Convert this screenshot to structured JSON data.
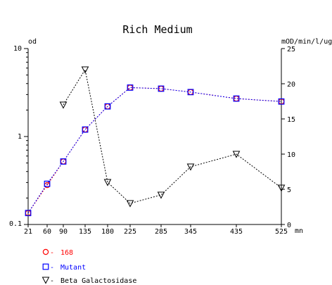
{
  "chart_data": {
    "type": "line",
    "title": "Rich Medium",
    "left_axis": {
      "label": "od",
      "scale": "log",
      "range": [
        0.1,
        10
      ],
      "ticks": [
        {
          "value": 0.1,
          "label": "0.1"
        },
        {
          "value": 1,
          "label": "1"
        },
        {
          "value": 10,
          "label": "10"
        }
      ]
    },
    "right_axis": {
      "label": "mOD/min/l/ug",
      "scale": "linear",
      "range": [
        0,
        25
      ],
      "ticks": [
        {
          "value": 0,
          "label": "0"
        },
        {
          "value": 5,
          "label": "5"
        },
        {
          "value": 10,
          "label": "10"
        },
        {
          "value": 15,
          "label": "15"
        },
        {
          "value": 20,
          "label": "20"
        },
        {
          "value": 25,
          "label": "25"
        }
      ]
    },
    "x_axis": {
      "label": "mn",
      "range": [
        21,
        525
      ],
      "ticks": [
        {
          "value": 21,
          "label": "21"
        },
        {
          "value": 60,
          "label": "60"
        },
        {
          "value": 90,
          "label": "90"
        },
        {
          "value": 135,
          "label": "135"
        },
        {
          "value": 180,
          "label": "180"
        },
        {
          "value": 225,
          "label": "225"
        },
        {
          "value": 285,
          "label": "285"
        },
        {
          "value": 345,
          "label": "345"
        },
        {
          "value": 435,
          "label": "435"
        },
        {
          "value": 525,
          "label": "525"
        }
      ]
    },
    "grid": false,
    "legend_position": "bottom-left",
    "series": [
      {
        "name": "168",
        "axis": "left",
        "marker": "circle",
        "color": "#ff0000",
        "x": [
          21,
          60,
          90,
          135,
          180,
          225,
          285,
          345,
          435,
          525
        ],
        "values": [
          0.135,
          0.28,
          0.52,
          1.2,
          2.2,
          3.6,
          3.5,
          3.2,
          2.7,
          2.5
        ]
      },
      {
        "name": "Mutant",
        "axis": "left",
        "marker": "square",
        "color": "#0000ff",
        "x": [
          21,
          60,
          90,
          135,
          180,
          225,
          285,
          345,
          435,
          525
        ],
        "values": [
          0.135,
          0.29,
          0.52,
          1.2,
          2.2,
          3.6,
          3.5,
          3.2,
          2.7,
          2.5
        ]
      },
      {
        "name": "Beta Galactosidase",
        "axis": "right",
        "marker": "triangle-down",
        "color": "#000000",
        "x": [
          90,
          135,
          180,
          225,
          285,
          345,
          435,
          525
        ],
        "values": [
          17,
          22,
          6,
          3,
          4.2,
          8.2,
          10,
          5.2
        ]
      }
    ]
  }
}
